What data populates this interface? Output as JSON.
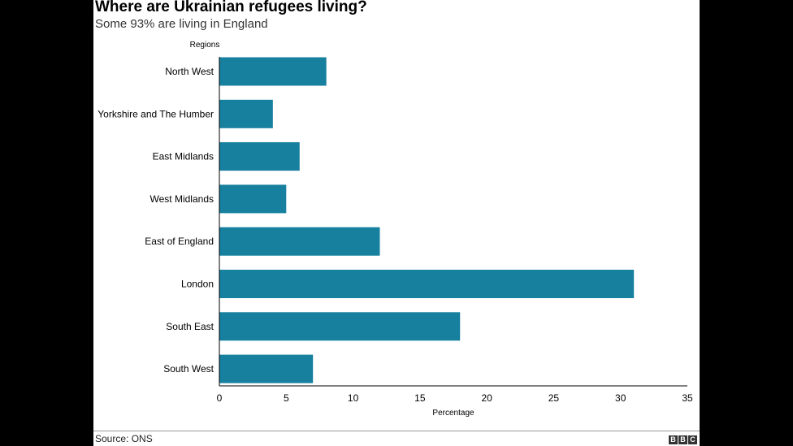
{
  "header": {
    "title": "Where are Ukrainian refugees living?",
    "subtitle": "Some 93% are living in England"
  },
  "footer": {
    "source": "Source: ONS",
    "logo_letters": [
      "B",
      "B",
      "C"
    ]
  },
  "colors": {
    "bar": "#17809f",
    "axis": "#000000",
    "background": "#ffffff",
    "frame": "#000000"
  },
  "chart_data": {
    "type": "bar",
    "orientation": "horizontal",
    "categories": [
      "North West",
      "Yorkshire and The Humber",
      "East Midlands",
      "West Midlands",
      "East of England",
      "London",
      "South East",
      "South West"
    ],
    "values": [
      8,
      4,
      6,
      5,
      12,
      31,
      18,
      7
    ],
    "xlim": [
      0,
      35
    ],
    "xticks": [
      0,
      5,
      10,
      15,
      20,
      25,
      30,
      35
    ],
    "xlabel": "Percentage",
    "ylabel": "Regions",
    "grid": false,
    "legend": "none"
  }
}
